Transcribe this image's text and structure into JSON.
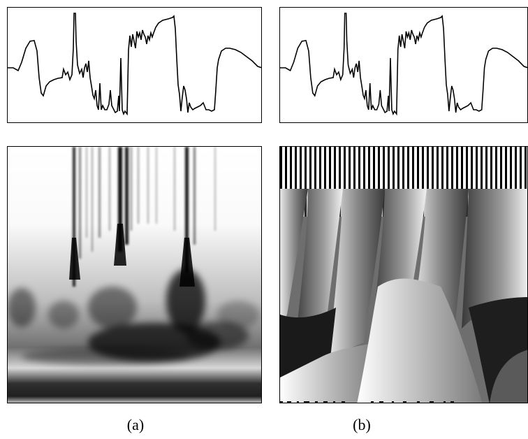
{
  "figure": {
    "captions": {
      "a": "(a)",
      "b": "(b)"
    },
    "colors": {
      "ink": "#000000",
      "background": "#ffffff"
    }
  }
}
